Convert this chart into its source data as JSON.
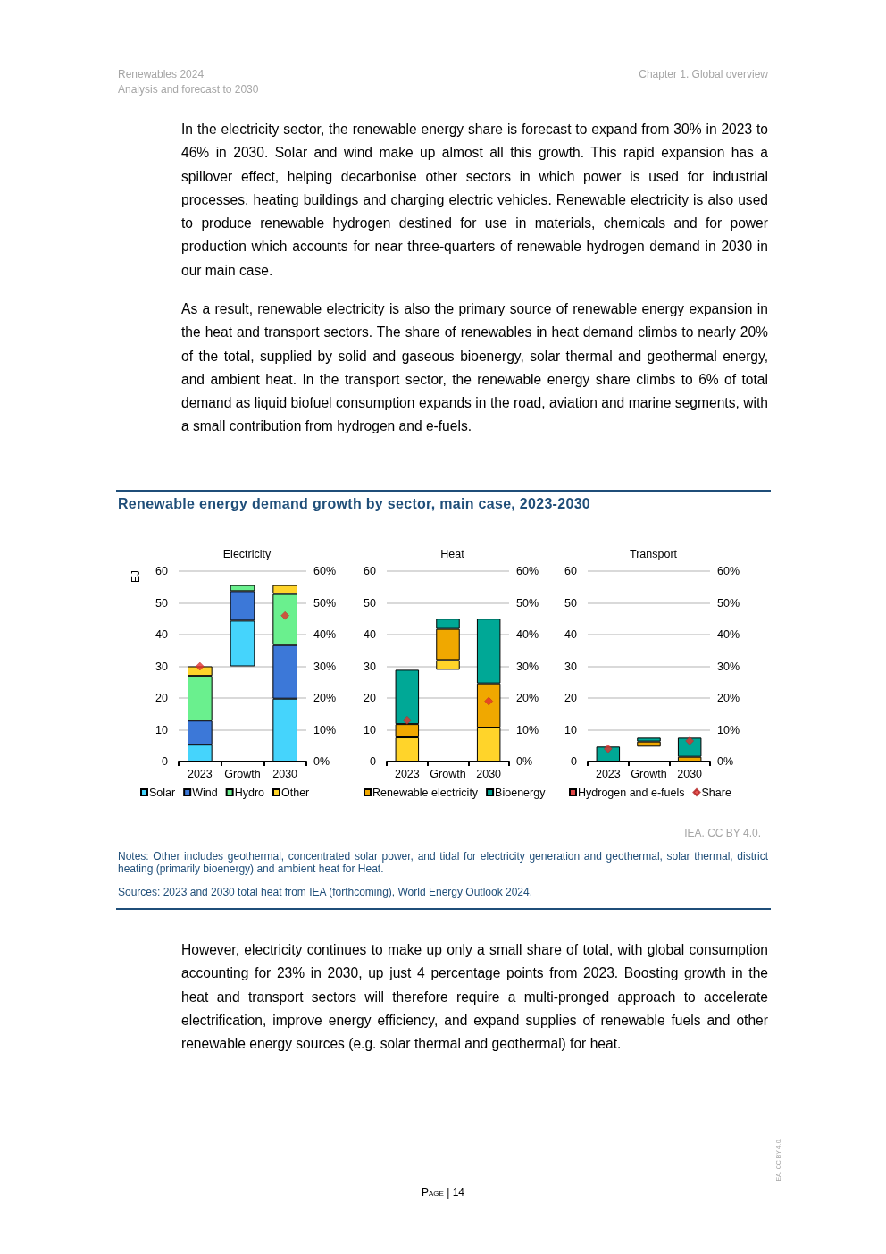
{
  "chart_data": [
    {
      "type": "bar",
      "title": "Electricity",
      "ylabel": "EJ",
      "stacked": true,
      "categories": [
        "2023",
        "Growth",
        "2030"
      ],
      "ylim": [
        0,
        60
      ],
      "yticks": [
        0,
        10,
        20,
        30,
        40,
        50,
        60
      ],
      "y2lim": [
        0,
        60
      ],
      "y2ticks": [
        {
          "value": 0,
          "label": "0%"
        },
        {
          "value": 10,
          "label": "10%"
        },
        {
          "value": 20,
          "label": "20%"
        },
        {
          "value": 30,
          "label": "30%"
        },
        {
          "value": 40,
          "label": "40%"
        },
        {
          "value": 50,
          "label": "50%"
        },
        {
          "value": 60,
          "label": "60%"
        }
      ],
      "grid": "y",
      "legend": "bottom",
      "annotations": [
        "Renewables 2024",
        "Analysis and forecast to 2030",
        "Chapter 1. Global overview",
        "In the electricity sector, the renewable energy share is forecast to expand from 30% in 2023 to 46% in 2030. Solar and wind make up almost all this growth. This rapid expansion has a spillover effect, helping decarbonise other sectors in which power is used for industrial processes, heating buildings and charging electric vehicles. Renewable electricity is also used to produce renewable hydrogen destined for use in materials, chemicals and for power production which accounts for near three-quarters of renewable hydrogen demand in 2030 in our main case.",
        "As a result, renewable electricity is also the primary source of renewable energy expansion in the heat and transport sectors. The share of renewables in heat demand climbs to nearly 20% of the total, supplied by solid and gaseous bioenergy, solar thermal and geothermal energy, and ambient heat. In the transport sector, the renewable energy share climbs to 6% of total demand as liquid biofuel consumption expands in the road, aviation and marine segments, with a small contribution from hydrogen and e-fuels.",
        "Renewable energy demand growth by sector, main case, 2023-2030",
        "IEA. CC BY 4.0.",
        "Notes: Other includes geothermal, concentrated solar power, and tidal for electricity generation and geothermal, solar thermal, district heating (primarily bioenergy) and ambient heat for Heat.",
        "Sources: 2023 and 2030 total heat from IEA (forthcoming), World Energy Outlook 2024.",
        "However, electricity continues to make up only a small share of total, with global consumption accounting for 23% in 2030, up just 4 percentage points from 2023. Boosting growth in the heat and transport sectors will therefore require a multi-pronged approach to accelerate electrification, improve energy efficiency, and expand supplies of renewable fuels and other renewable energy sources (e.g. solar thermal and geothermal) for heat.",
        "Page | 14",
        "IEA. CC BY 4.0."
      ],
      "series": [
        {
          "name": "Solar",
          "color": "#45d4fc",
          "base": [
            0,
            30,
            0
          ],
          "values": [
            5.3,
            14.4,
            19.8
          ]
        },
        {
          "name": "Wind",
          "color": "#3c78d8",
          "values": [
            7.6,
            9.3,
            16.9
          ]
        },
        {
          "name": "Hydro",
          "color": "#6af08e",
          "values": [
            14.1,
            1.9,
            16.1
          ]
        },
        {
          "name": "Other",
          "color": "#ffd42a",
          "values": [
            3,
            null,
            2.8
          ]
        },
        {
          "type": "scatter",
          "axis": "y2",
          "marker": "diamond",
          "color": "#e3302c",
          "values": [
            30,
            null,
            46
          ]
        }
      ]
    },
    {
      "type": "bar",
      "title": "Heat",
      "stacked": true,
      "categories": [
        "2023",
        "Growth",
        "2030"
      ],
      "ylim": [
        0,
        60
      ],
      "yticks": [
        0,
        10,
        20,
        30,
        40,
        50,
        60
      ],
      "y2lim": [
        0,
        60
      ],
      "y2ticks": [
        {
          "value": 0,
          "label": "0%"
        },
        {
          "value": 10,
          "label": "10%"
        },
        {
          "value": 20,
          "label": "20%"
        },
        {
          "value": 30,
          "label": "30%"
        },
        {
          "value": 40,
          "label": "40%"
        },
        {
          "value": 50,
          "label": "50%"
        },
        {
          "value": 60,
          "label": "60%"
        }
      ],
      "grid": "y",
      "legend": "bottom",
      "series": [
        {
          "name": "Other",
          "color": "#ffd42a",
          "base": [
            0,
            28.9,
            0
          ],
          "values": [
            7.6,
            3.1,
            10.7
          ]
        },
        {
          "name": "Renewable electricity",
          "color": "#f0a800",
          "values": [
            4.2,
            9.8,
            13.9
          ]
        },
        {
          "name": "Bioenergy",
          "color": "#00a896",
          "values": [
            17.1,
            3.2,
            20.4
          ]
        },
        {
          "type": "scatter",
          "axis": "y2",
          "marker": "diamond",
          "color": "#e3302c",
          "values": [
            13,
            null,
            19
          ]
        }
      ]
    },
    {
      "type": "bar",
      "title": "Transport",
      "stacked": true,
      "categories": [
        "2023",
        "Growth",
        "2030"
      ],
      "ylim": [
        0,
        60
      ],
      "yticks": [
        0,
        10,
        20,
        30,
        40,
        50,
        60
      ],
      "y2lim": [
        0,
        60
      ],
      "y2ticks": [
        {
          "value": 0,
          "label": "0%"
        },
        {
          "value": 10,
          "label": "10%"
        },
        {
          "value": 20,
          "label": "20%"
        },
        {
          "value": 30,
          "label": "30%"
        },
        {
          "value": 40,
          "label": "40%"
        },
        {
          "value": 50,
          "label": "50%"
        },
        {
          "value": 60,
          "label": "60%"
        }
      ],
      "grid": "y",
      "legend": "bottom",
      "series": [
        {
          "name": "Renewable electricity",
          "color": "#f0a800",
          "base": [
            null,
            4.7,
            0
          ],
          "values": [
            null,
            1.6,
            1.5
          ]
        },
        {
          "name": "Bioenergy",
          "color": "#00a896",
          "values": [
            4.7,
            1.2,
            6
          ]
        },
        {
          "name": "Hydrogen and e-fuels",
          "color": "#e04848",
          "values": [
            null,
            null,
            null
          ]
        },
        {
          "name": "Share",
          "type": "scatter",
          "axis": "y2",
          "marker": "diamond",
          "color": "#e3302c",
          "values": [
            4,
            null,
            6.5
          ]
        }
      ]
    }
  ]
}
